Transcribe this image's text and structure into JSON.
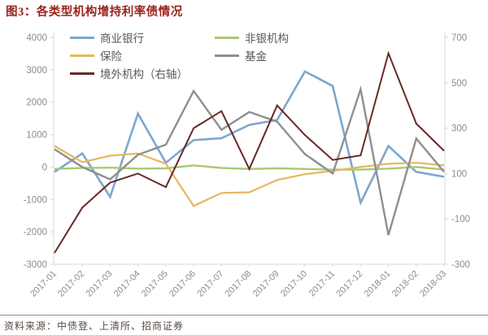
{
  "title": "图3：各类型机构增持利率债情况",
  "source_note": "资料来源：中债登、上清所、招商证券",
  "colors": {
    "title": "#9a231b",
    "source_text": "#5a4a42",
    "axis_text": "#8c8c8c",
    "axis_line": "#d9d9d9",
    "legend_text": "#595959",
    "divider": "#8f8f8f"
  },
  "chart_data": {
    "type": "line",
    "title": "图3：各类型机构增持利率债情况",
    "categories": [
      "2017-01",
      "2017-02",
      "2017-03",
      "2017-04",
      "2017-05",
      "2017-06",
      "2017-07",
      "2017-08",
      "2017-09",
      "2017-10",
      "2017-11",
      "2017-12",
      "2018-01",
      "2018-02",
      "2018-03"
    ],
    "series": [
      {
        "name": "商业银行",
        "axis": "left",
        "color": "#7da7cd",
        "width": 2.6,
        "values": [
          -150,
          420,
          -920,
          1650,
          130,
          830,
          890,
          1300,
          1450,
          2950,
          2500,
          -1100,
          650,
          -150,
          -300
        ]
      },
      {
        "name": "非银机构",
        "axis": "left",
        "color": "#a9c874",
        "width": 2.4,
        "values": [
          -60,
          -30,
          -20,
          -50,
          -40,
          50,
          -30,
          -60,
          -40,
          -60,
          -80,
          -80,
          -50,
          0,
          -80
        ]
      },
      {
        "name": "保险",
        "axis": "left",
        "color": "#e6b85c",
        "width": 2.2,
        "values": [
          650,
          150,
          350,
          420,
          100,
          -1200,
          -800,
          -780,
          -400,
          -220,
          -120,
          0,
          100,
          130,
          50
        ]
      },
      {
        "name": "基金",
        "axis": "left",
        "color": "#8f8f8f",
        "width": 2.4,
        "values": [
          550,
          0,
          -380,
          380,
          690,
          2350,
          1150,
          1700,
          1400,
          400,
          -200,
          2400,
          -2100,
          880,
          -150
        ]
      },
      {
        "name": "境外机构（右轴）",
        "axis": "right",
        "color": "#672a25",
        "width": 2.0,
        "values": [
          -250,
          -50,
          60,
          100,
          40,
          300,
          375,
          120,
          400,
          270,
          160,
          180,
          630,
          320,
          200
        ]
      }
    ],
    "left_axis": {
      "min": -3000,
      "max": 4000,
      "ticks": [
        4000,
        3000,
        2000,
        1000,
        0,
        -1000,
        -2000,
        -3000
      ]
    },
    "right_axis": {
      "min": -300,
      "max": 700,
      "ticks": [
        700,
        500,
        300,
        100,
        -100,
        -300
      ]
    },
    "legend_position": "top",
    "grid": false,
    "plot_background": "#ffffff"
  }
}
